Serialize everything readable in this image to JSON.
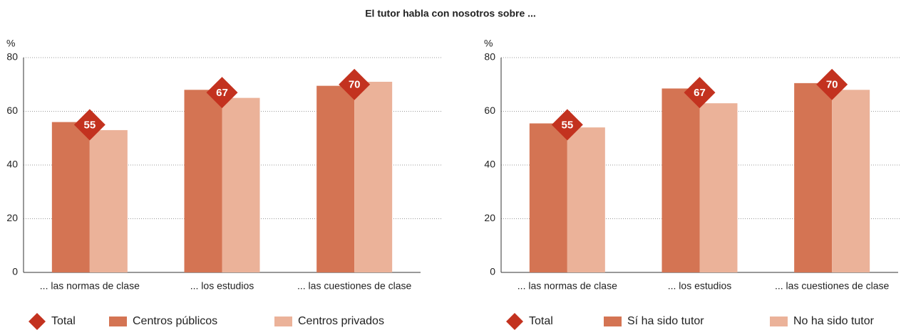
{
  "title": "El tutor habla con nosotros sobre ...",
  "chart_data": [
    {
      "type": "bar",
      "y_label": "%",
      "categories": [
        "... las normas de clase",
        "... los estudios",
        "... las cuestiones de clase"
      ],
      "ylim": [
        0,
        80
      ],
      "yticks": [
        0,
        20,
        40,
        60,
        80
      ],
      "grid": true,
      "series": [
        {
          "name": "Total",
          "color": "#c3321f",
          "marker": "diamond",
          "values": [
            55,
            67,
            70
          ]
        },
        {
          "name": "Centros públicos",
          "color": "#d47453",
          "values": [
            56,
            68,
            69.5
          ]
        },
        {
          "name": "Centros privados",
          "color": "#ebb299",
          "values": [
            53,
            65,
            71
          ]
        }
      ]
    },
    {
      "type": "bar",
      "y_label": "%",
      "categories": [
        "... las normas de clase",
        "... los estudios",
        "... las cuestiones de clase"
      ],
      "ylim": [
        0,
        80
      ],
      "yticks": [
        0,
        20,
        40,
        60,
        80
      ],
      "grid": true,
      "series": [
        {
          "name": "Total",
          "color": "#c3321f",
          "marker": "diamond",
          "values": [
            55,
            67,
            70
          ]
        },
        {
          "name": "Sí ha sido tutor",
          "color": "#d47453",
          "values": [
            55.5,
            68.5,
            70.5
          ]
        },
        {
          "name": "No ha sido tutor",
          "color": "#ebb299",
          "values": [
            54,
            63,
            68
          ]
        }
      ]
    }
  ]
}
